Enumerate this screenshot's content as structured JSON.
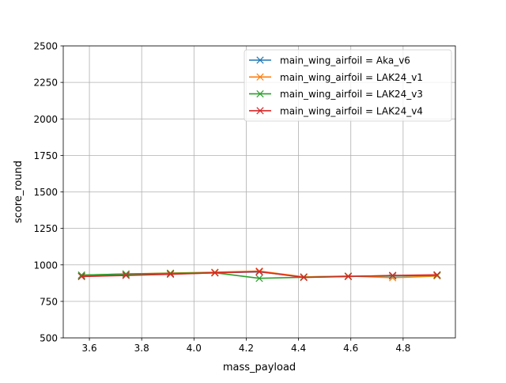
{
  "chart_data": {
    "type": "line",
    "xlabel": "mass_payload",
    "ylabel": "score_round",
    "xlim": [
      3.5,
      5.0
    ],
    "ylim": [
      500,
      2500
    ],
    "x_ticks": [
      3.6,
      3.8,
      4.0,
      4.2,
      4.4,
      4.6,
      4.8
    ],
    "x_tick_labels": [
      "3.6",
      "3.8",
      "4.0",
      "4.2",
      "4.4",
      "4.6",
      "4.8"
    ],
    "y_ticks": [
      500,
      750,
      1000,
      1250,
      1500,
      1750,
      2000,
      2250,
      2500
    ],
    "y_tick_labels": [
      "500",
      "750",
      "1000",
      "1250",
      "1500",
      "1750",
      "2000",
      "2250",
      "2500"
    ],
    "grid": true,
    "legend_position": "top-right",
    "marker": "x",
    "x": [
      3.57,
      3.74,
      3.91,
      4.08,
      4.25,
      4.42,
      4.59,
      4.76,
      4.93
    ],
    "series": [
      {
        "name": "main_wing_airfoil = Aka_v6",
        "color": "#1f77b4",
        "values": [
          923,
          930,
          938,
          946,
          952,
          918,
          922,
          924,
          930
        ]
      },
      {
        "name": "main_wing_airfoil = LAK24_v1",
        "color": "#ff7f0e",
        "values": [
          930,
          938,
          944,
          950,
          958,
          918,
          924,
          912,
          924
        ]
      },
      {
        "name": "main_wing_airfoil = LAK24_v3",
        "color": "#2ca02c",
        "values": [
          930,
          938,
          942,
          946,
          908,
          915,
          922,
          926,
          928
        ]
      },
      {
        "name": "main_wing_airfoil = LAK24_v4",
        "color": "#d62728",
        "values": [
          920,
          928,
          936,
          946,
          954,
          914,
          920,
          928,
          932
        ]
      }
    ]
  }
}
